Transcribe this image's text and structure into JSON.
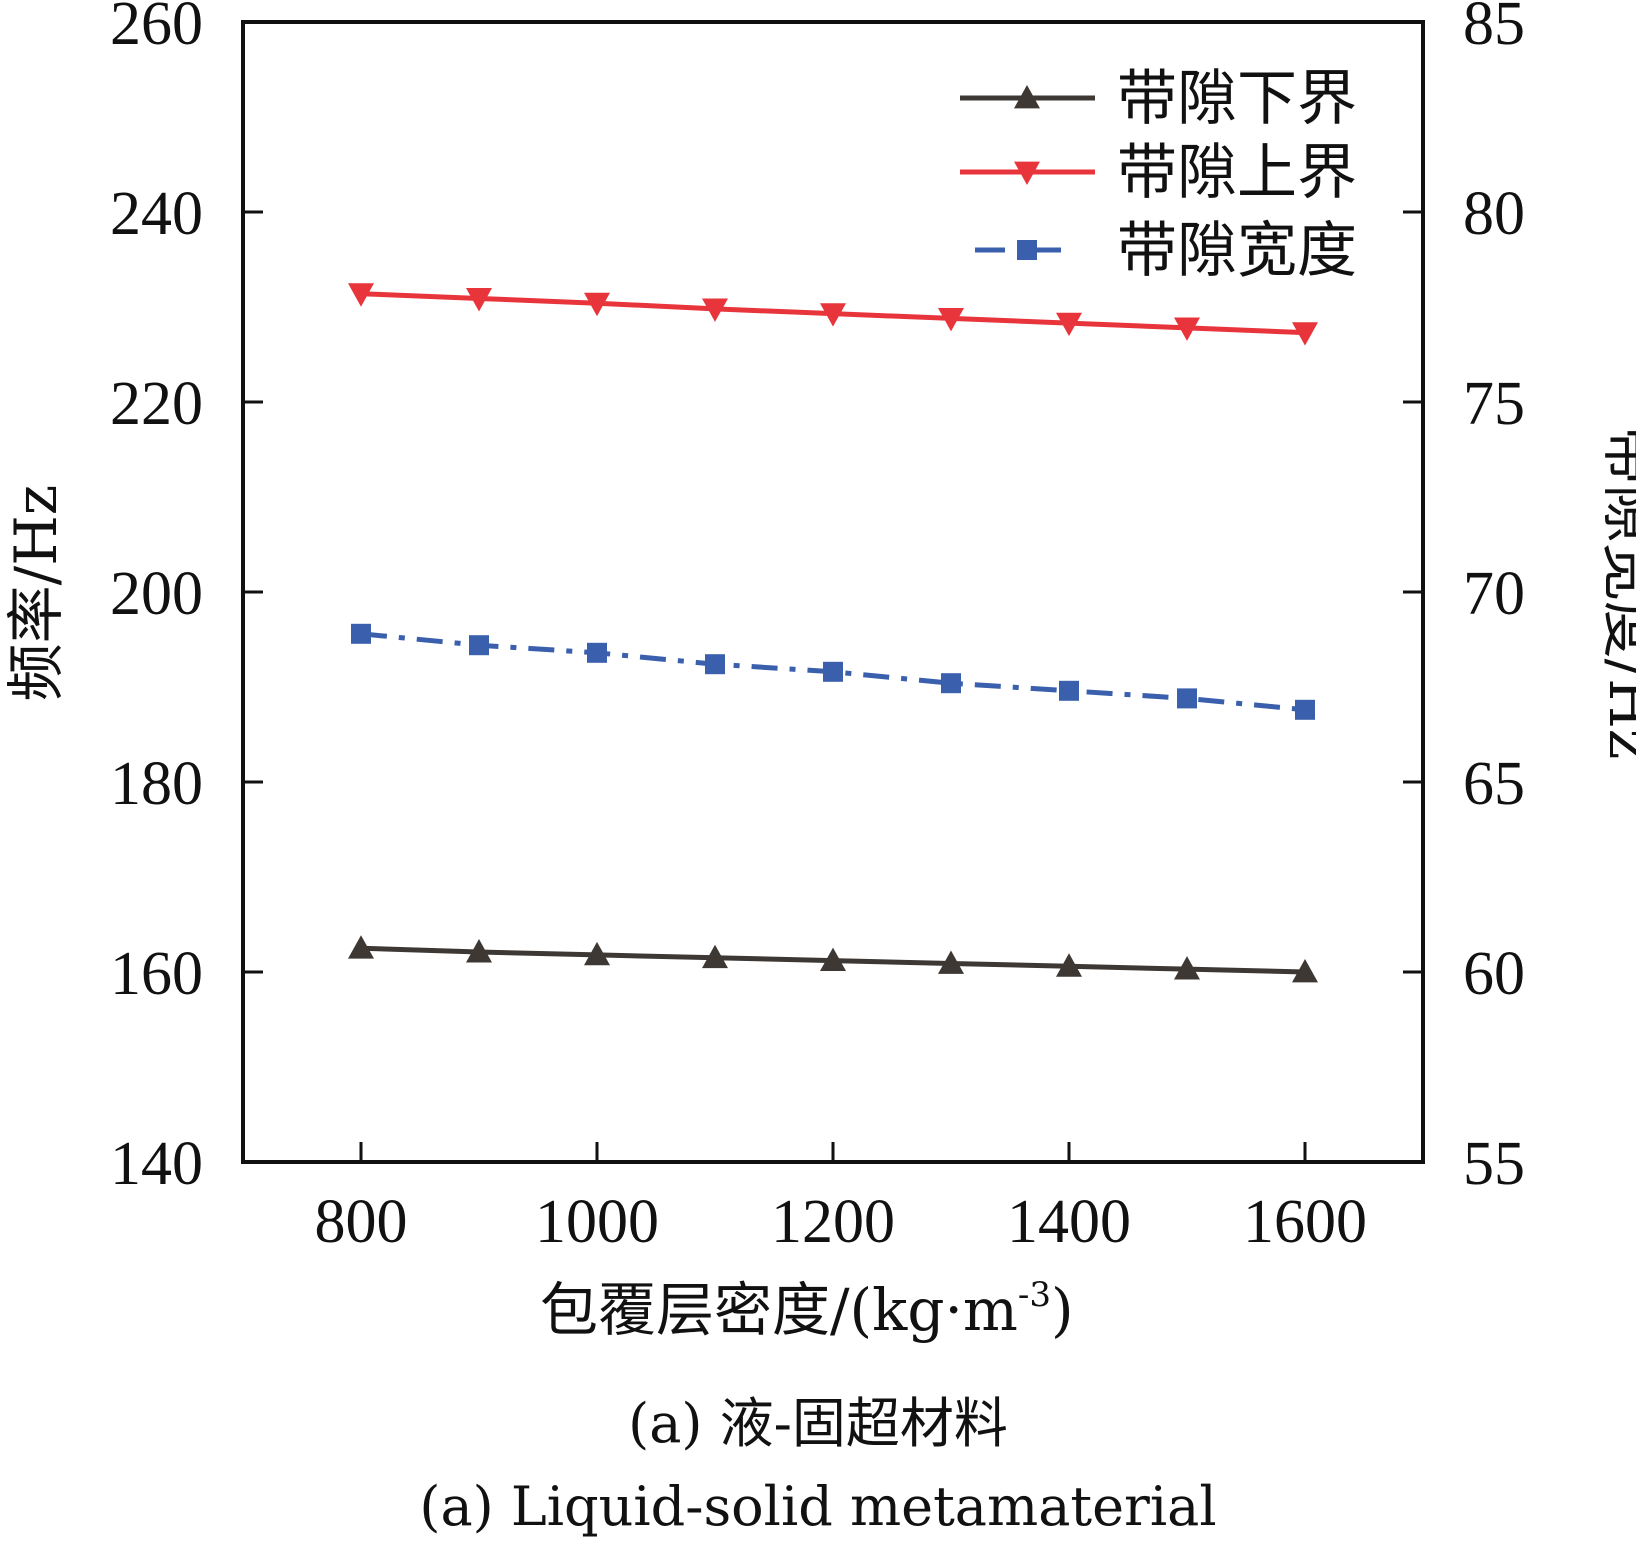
{
  "chart_data": {
    "type": "line",
    "x": [
      800,
      900,
      1000,
      1100,
      1200,
      1300,
      1400,
      1500,
      1600
    ],
    "xlabel": "包覆层密度/(kg·m",
    "xlabel_sup": "-3",
    "xlabel_close": ")",
    "ylabel_left": "频率/Hz",
    "ylabel_right": "带隙宽度/Hz",
    "xlim": [
      700,
      1700
    ],
    "ylim_left": [
      140,
      260
    ],
    "ylim_right": [
      55,
      85
    ],
    "x_ticks": [
      "800",
      "1000",
      "1200",
      "1400",
      "1600"
    ],
    "y_ticks_left": [
      "140",
      "160",
      "180",
      "200",
      "220",
      "240",
      "260"
    ],
    "y_ticks_right": [
      "55",
      "60",
      "65",
      "70",
      "75",
      "80",
      "85"
    ],
    "series": [
      {
        "name": "带隙下界",
        "axis": "left",
        "marker": "triangle-up",
        "color": "#3d3834",
        "dash": "solid",
        "values": [
          162.5,
          162.1,
          161.8,
          161.5,
          161.2,
          160.9,
          160.6,
          160.3,
          160.0
        ]
      },
      {
        "name": "带隙上界",
        "axis": "left",
        "marker": "triangle-down",
        "color": "#e8353b",
        "dash": "solid",
        "values": [
          231.4,
          230.9,
          230.4,
          229.8,
          229.3,
          228.8,
          228.3,
          227.8,
          227.3
        ]
      },
      {
        "name": "带隙宽度",
        "axis": "right",
        "marker": "square",
        "color": "#3a5fad",
        "dash": "dashdot",
        "values": [
          68.9,
          68.6,
          68.4,
          68.1,
          67.9,
          67.6,
          67.4,
          67.2,
          66.9
        ]
      }
    ],
    "legend_position": "top-right",
    "grid": false
  },
  "caption": {
    "line1": "(a) 液-固超材料",
    "line2": "(a) Liquid-solid metamaterial"
  }
}
